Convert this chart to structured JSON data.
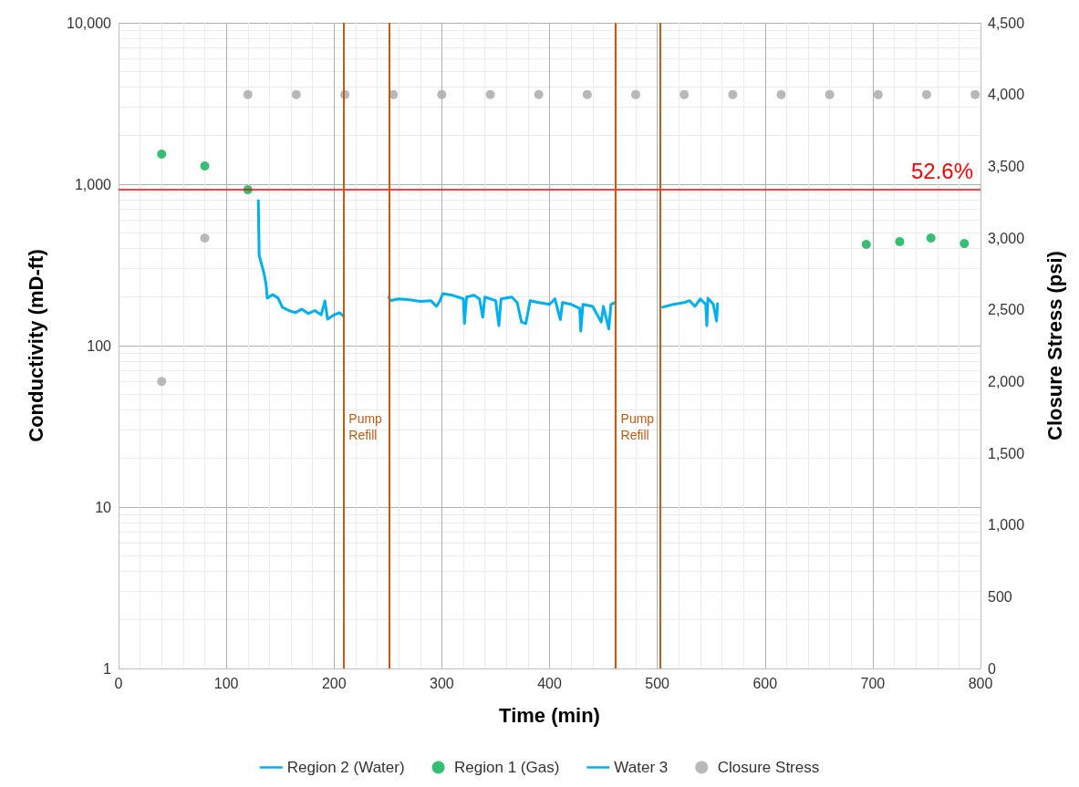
{
  "chart_data": {
    "type": "line",
    "xlabel": "Time (min)",
    "ylabel": "Conductivity (mD-ft)",
    "y2label": "Closure Stress (psi)",
    "xlim": [
      0,
      800
    ],
    "xticks": [
      0,
      100,
      200,
      300,
      400,
      500,
      600,
      700,
      800
    ],
    "ylim": [
      1,
      10000
    ],
    "yticks": [
      1,
      10,
      100,
      {
        "value": 1000,
        "label": "1,000"
      },
      {
        "value": 10000,
        "label": "10,000"
      }
    ],
    "y2lim": [
      0,
      4500
    ],
    "y2ticks": [
      0,
      500,
      {
        "value": 1000,
        "label": "1,000"
      },
      {
        "value": 1500,
        "label": "1,500"
      },
      {
        "value": 2000,
        "label": "2,000"
      },
      {
        "value": 2500,
        "label": "2,500"
      },
      {
        "value": 3000,
        "label": "3,000"
      },
      {
        "value": 3500,
        "label": "3,500"
      },
      {
        "value": 4000,
        "label": "4,000"
      },
      {
        "value": 4500,
        "label": "4,500"
      }
    ],
    "annotations": [
      "52.6%"
    ],
    "log": "y",
    "grid": true,
    "legend": "bottom",
    "series": [
      {
        "name": "Region 2 (Water)",
        "type": "line",
        "marker": "none",
        "color": "#00b0f0",
        "x": [
          129.7,
          130.5,
          135,
          137,
          138,
          143,
          148,
          152,
          158,
          164,
          170,
          176,
          182,
          188,
          191.5,
          194,
          200,
          205,
          209
        ],
        "values": [
          791,
          363,
          280,
          236,
          197,
          207,
          197,
          173,
          165,
          160,
          168,
          158,
          165,
          155,
          189,
          146,
          155,
          160,
          152
        ]
      },
      {
        "name": "Region 1 (Gas)",
        "type": "scatter",
        "marker": "circle",
        "color": "#00b050",
        "x": [
          40,
          80,
          120,
          694,
          725,
          754,
          785
        ],
        "values": [
          1536,
          1297,
          925,
          424,
          441,
          464,
          429
        ]
      },
      {
        "name": "Water 3",
        "type": "line",
        "marker": "none",
        "color": "#00b0f0",
        "x": [
          251,
          252,
          260,
          270,
          280,
          290,
          295,
          298,
          301,
          310,
          315,
          320,
          321,
          323,
          330,
          335,
          338,
          340,
          350,
          353,
          355,
          365,
          370,
          374,
          378,
          382,
          390,
          400,
          405,
          410,
          412,
          420,
          428,
          429,
          431,
          440,
          448,
          450,
          455,
          457,
          461,
          480,
          505,
          515,
          525,
          530,
          535,
          540,
          545,
          546,
          547,
          552,
          555,
          556
        ],
        "values": [
          200,
          190,
          195,
          192,
          188,
          190,
          175,
          188,
          210,
          205,
          200,
          195,
          137,
          200,
          205,
          195,
          150,
          200,
          190,
          133,
          195,
          200,
          185,
          140,
          137,
          190,
          185,
          180,
          195,
          145,
          185,
          180,
          170,
          123,
          180,
          175,
          140,
          175,
          127,
          180,
          185,
          null,
          173,
          180,
          185,
          190,
          175,
          195,
          180,
          133,
          197,
          180,
          142,
          182
        ]
      },
      {
        "name": "Closure Stress",
        "type": "scatter",
        "marker": "circle",
        "axis": "y2",
        "color": "#a6a6a6",
        "x": [
          40,
          80,
          120,
          165,
          210,
          255,
          300,
          345,
          390,
          435,
          480,
          525,
          570,
          615,
          660,
          705,
          750,
          795
        ],
        "values": [
          2000,
          3000,
          4000,
          4000,
          4000,
          4000,
          4000,
          4000,
          4000,
          4000,
          4000,
          4000,
          4000,
          4000,
          4000,
          4000,
          4000,
          4000
        ]
      }
    ],
    "ref_lines": [
      {
        "axis": "y",
        "value": 925,
        "label": null,
        "color": "#ff0000"
      },
      {
        "axis": "x",
        "value": 208.5,
        "label": "Pump Refill",
        "color": "#c55a11"
      },
      {
        "axis": "x",
        "value": 251,
        "label": null,
        "color": "#c55a11"
      },
      {
        "axis": "x",
        "value": 461,
        "label": "Pump Refill",
        "color": "#c55a11"
      },
      {
        "axis": "x",
        "value": 503,
        "label": null,
        "color": "#c55a11"
      }
    ]
  }
}
